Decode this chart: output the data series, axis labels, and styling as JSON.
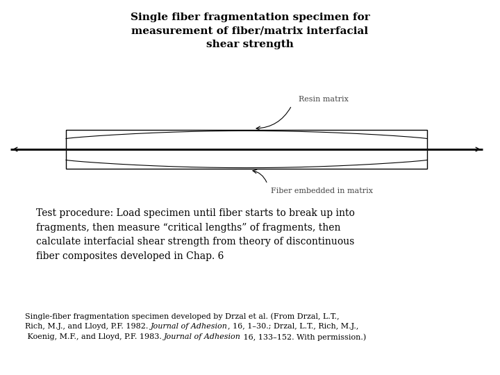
{
  "title": "Single fiber fragmentation specimen for\nmeasurement of fiber/matrix interfacial\nshear strength",
  "title_fontsize": 11,
  "title_fontweight": "bold",
  "body_text": "Test procedure: Load specimen until fiber starts to break up into\nfragments, then measure “critical lengths” of fragments, then\ncalculate interfacial shear strength from theory of discontinuous\nfiber composites developed in Chap. 6",
  "body_fontsize": 10,
  "caption_line1": "Single-fiber fragmentation specimen developed by Drzal et al. (From Drzal, L.T.,",
  "caption_line2_pre": "Rich, M.J., and Lloyd, P.F. 1982. ",
  "caption_line2_italic": "Journal of Adhesion",
  "caption_line2_post": ", 16, 1–30.; Drzal, L.T., Rich, M.J.,",
  "caption_line3_pre": " Koenig, M.F., and Lloyd, P.F. 1983. ",
  "caption_line3_italic": "Journal of Adhesion",
  "caption_line3_post": " 16, 133–152. With permission.)",
  "caption_fontsize": 8,
  "background_color": "#ffffff",
  "diagram_label_resin": "Resin matrix",
  "diagram_label_fiber": "Fiber embedded in matrix"
}
